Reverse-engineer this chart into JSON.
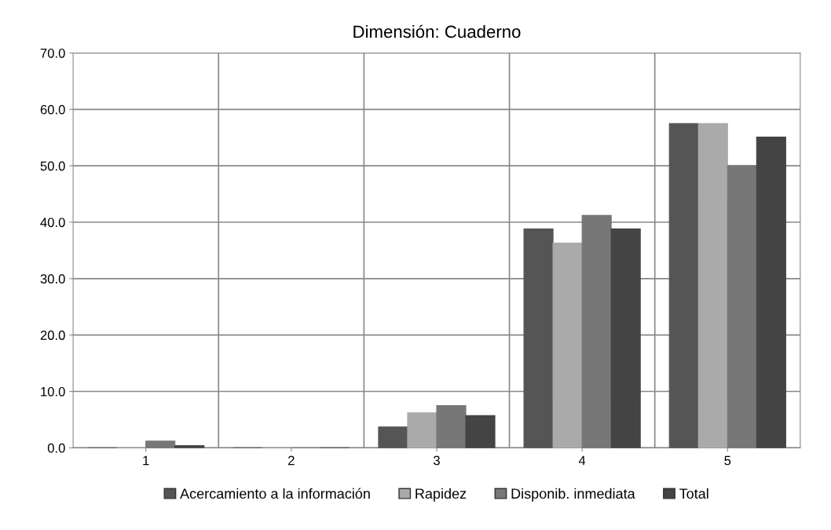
{
  "chart_data": {
    "type": "bar",
    "title": "Dimensión: Cuaderno",
    "categories": [
      "1",
      "2",
      "3",
      "4",
      "5"
    ],
    "series": [
      {
        "name": "Acercamiento a la información",
        "color": "#555555",
        "values": [
          0,
          0,
          3.7,
          38.8,
          57.5
        ]
      },
      {
        "name": "Rapidez",
        "color": "#aaaaaa",
        "values": [
          0,
          0,
          6.2,
          36.3,
          57.5
        ]
      },
      {
        "name": "Disponib. inmediata",
        "color": "#777777",
        "values": [
          1.2,
          0,
          7.5,
          41.2,
          50.0
        ]
      },
      {
        "name": "Total",
        "color": "#444444",
        "values": [
          0.4,
          0,
          5.7,
          38.8,
          55.1
        ]
      }
    ],
    "ylim": [
      0,
      70
    ],
    "yticks": [
      {
        "value": 0,
        "label": "0.0"
      },
      {
        "value": 10,
        "label": "10.0"
      },
      {
        "value": 20,
        "label": "20.0"
      },
      {
        "value": 30,
        "label": "30.0"
      },
      {
        "value": 40,
        "label": "40.0"
      },
      {
        "value": 50,
        "label": "50.0"
      },
      {
        "value": 60,
        "label": "60.0"
      },
      {
        "value": 70,
        "label": "70.0"
      }
    ],
    "grid": true,
    "legend": "bottom"
  }
}
